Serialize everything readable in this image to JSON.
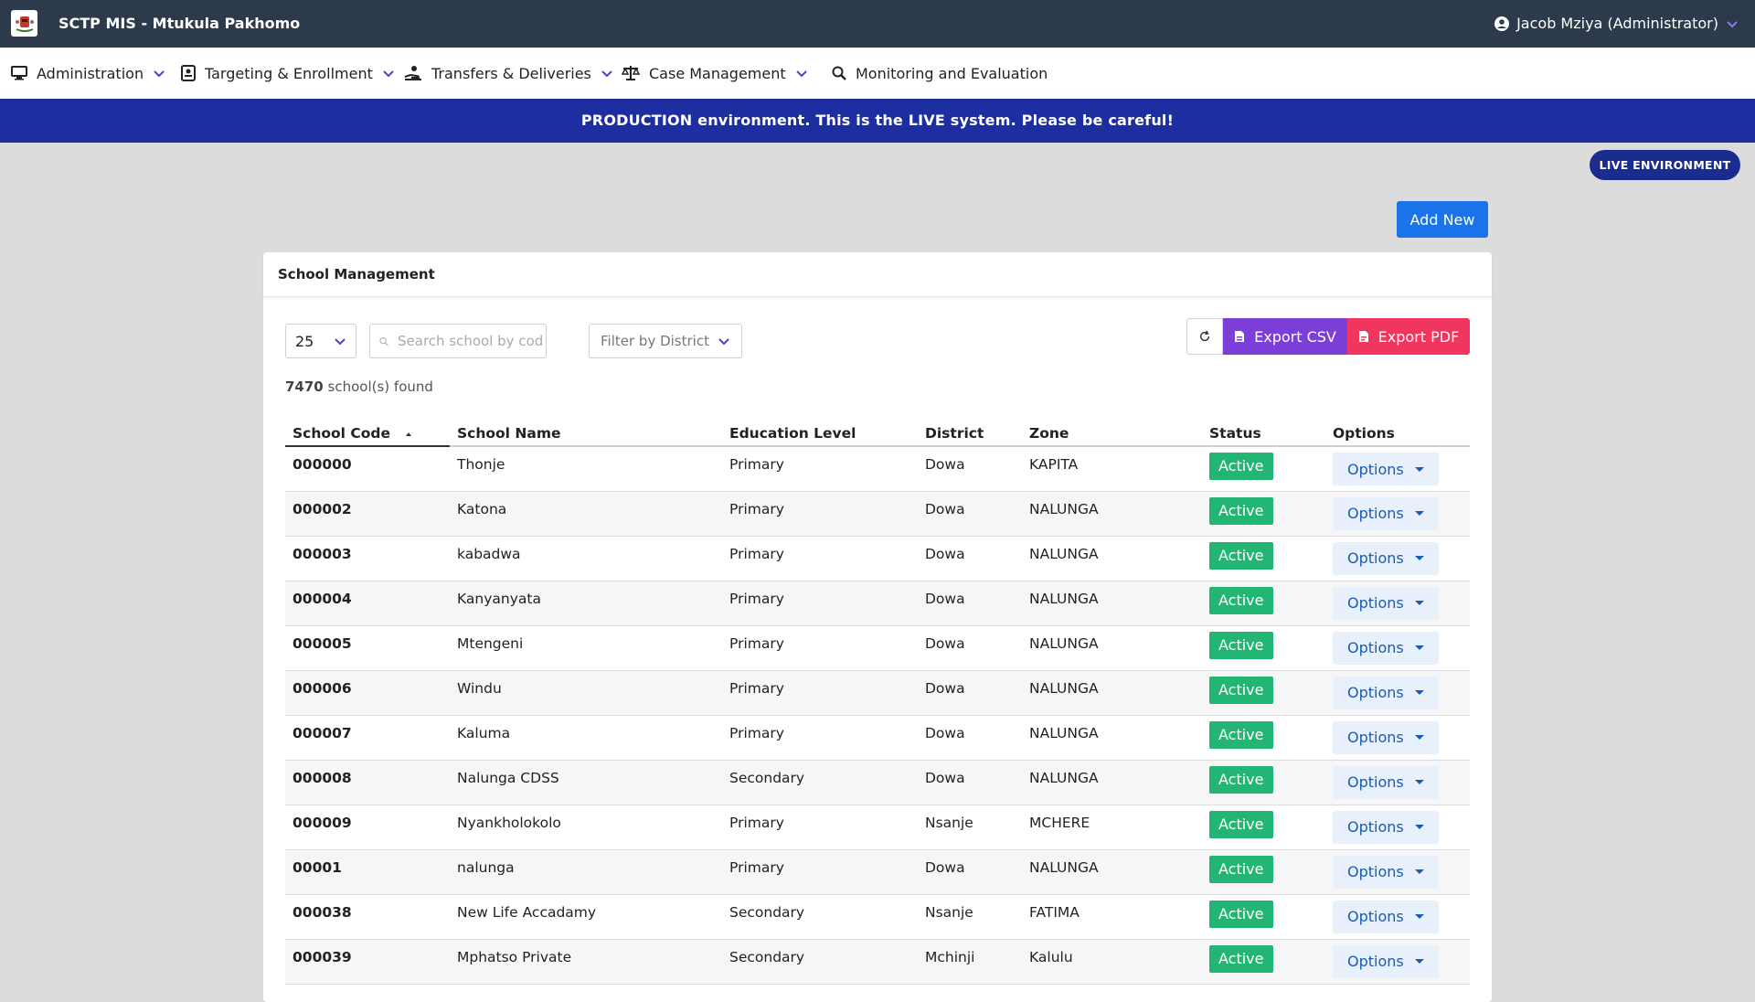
{
  "header": {
    "app_title": "SCTP MIS - Mtukula Pakhomo",
    "user": "Jacob Mziya (Administrator)"
  },
  "nav": {
    "items": [
      {
        "label": "Administration",
        "icon": "monitor-icon"
      },
      {
        "label": "Targeting & Enrollment",
        "icon": "id-card-icon"
      },
      {
        "label": "Transfers & Deliveries",
        "icon": "hand-coin-icon"
      },
      {
        "label": "Case Management",
        "icon": "scale-icon"
      },
      {
        "label": "Monitoring and Evaluation",
        "icon": "search-icon"
      }
    ]
  },
  "banner": "PRODUCTION environment. This is the LIVE system. Please be careful!",
  "live_pill": "LIVE ENVIRONMENT",
  "add_new": "Add New",
  "card": {
    "title": "School Management",
    "page_size": "25",
    "search_placeholder": "Search school by code or name",
    "district_placeholder": "Filter by District",
    "export_csv": "Export CSV",
    "export_pdf": "Export PDF",
    "count_number": "7470",
    "count_suffix": "school(s) found"
  },
  "table": {
    "columns": [
      "School Code",
      "School Name",
      "Education Level",
      "District",
      "Zone",
      "Status",
      "Options"
    ],
    "rows": [
      {
        "code": "000000",
        "name": "Thonje",
        "level": "Primary",
        "district": "Dowa",
        "zone": "KAPITA",
        "status": "Active",
        "options": "Options"
      },
      {
        "code": "000002",
        "name": "Katona",
        "level": "Primary",
        "district": "Dowa",
        "zone": "NALUNGA",
        "status": "Active",
        "options": "Options"
      },
      {
        "code": "000003",
        "name": "kabadwa",
        "level": "Primary",
        "district": "Dowa",
        "zone": "NALUNGA",
        "status": "Active",
        "options": "Options"
      },
      {
        "code": "000004",
        "name": "Kanyanyata",
        "level": "Primary",
        "district": "Dowa",
        "zone": "NALUNGA",
        "status": "Active",
        "options": "Options"
      },
      {
        "code": "000005",
        "name": "Mtengeni",
        "level": "Primary",
        "district": "Dowa",
        "zone": "NALUNGA",
        "status": "Active",
        "options": "Options"
      },
      {
        "code": "000006",
        "name": "Windu",
        "level": "Primary",
        "district": "Dowa",
        "zone": "NALUNGA",
        "status": "Active",
        "options": "Options"
      },
      {
        "code": "000007",
        "name": "Kaluma",
        "level": "Primary",
        "district": "Dowa",
        "zone": "NALUNGA",
        "status": "Active",
        "options": "Options"
      },
      {
        "code": "000008",
        "name": "Nalunga CDSS",
        "level": "Secondary",
        "district": "Dowa",
        "zone": "NALUNGA",
        "status": "Active",
        "options": "Options"
      },
      {
        "code": "000009",
        "name": "Nyankholokolo",
        "level": "Primary",
        "district": "Nsanje",
        "zone": "MCHERE",
        "status": "Active",
        "options": "Options"
      },
      {
        "code": "00001",
        "name": "nalunga",
        "level": "Primary",
        "district": "Dowa",
        "zone": "NALUNGA",
        "status": "Active",
        "options": "Options"
      },
      {
        "code": "000038",
        "name": "New Life Accadamy",
        "level": "Secondary",
        "district": "Nsanje",
        "zone": "FATIMA",
        "status": "Active",
        "options": "Options"
      },
      {
        "code": "000039",
        "name": "Mphatso Private",
        "level": "Secondary",
        "district": "Mchinji",
        "zone": "Kalulu",
        "status": "Active",
        "options": "Options"
      }
    ]
  }
}
